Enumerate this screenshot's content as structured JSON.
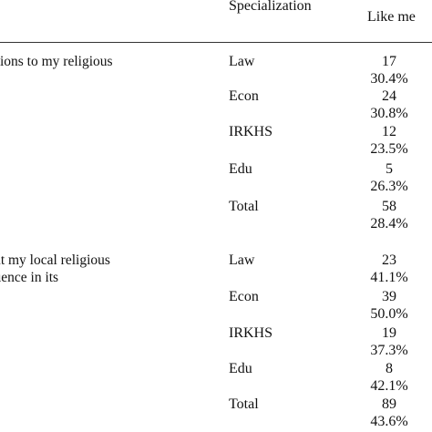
{
  "header": {
    "specialization": "Specialization",
    "like_me": "Like me"
  },
  "groups": [
    {
      "question_lines": [
        "ucial contributions to my religious",
        "."
      ],
      "rows": [
        {
          "spec": "Law",
          "count": "17",
          "pct": "30.4%"
        },
        {
          "spec": "Econ",
          "count": "24",
          "pct": "30.8%"
        },
        {
          "spec": "IRKHS",
          "count": "12",
          "pct": "23.5%"
        },
        {
          "spec": "Edu",
          "count": "5",
          "pct": "26.3%"
        },
        {
          "spec": "Total",
          "count": "58",
          "pct": "28.4%"
        }
      ]
    },
    {
      "question_lines": [
        "informed about my local religious",
        "ave some influence in its"
      ],
      "rows": [
        {
          "spec": "Law",
          "count": "23",
          "pct": "41.1%"
        },
        {
          "spec": "Econ",
          "count": "39",
          "pct": "50.0%"
        },
        {
          "spec": "IRKHS",
          "count": "19",
          "pct": "37.3%"
        },
        {
          "spec": "Edu",
          "count": "8",
          "pct": "42.1%"
        },
        {
          "spec": "Total",
          "count": "89",
          "pct": "43.6%"
        }
      ]
    }
  ]
}
